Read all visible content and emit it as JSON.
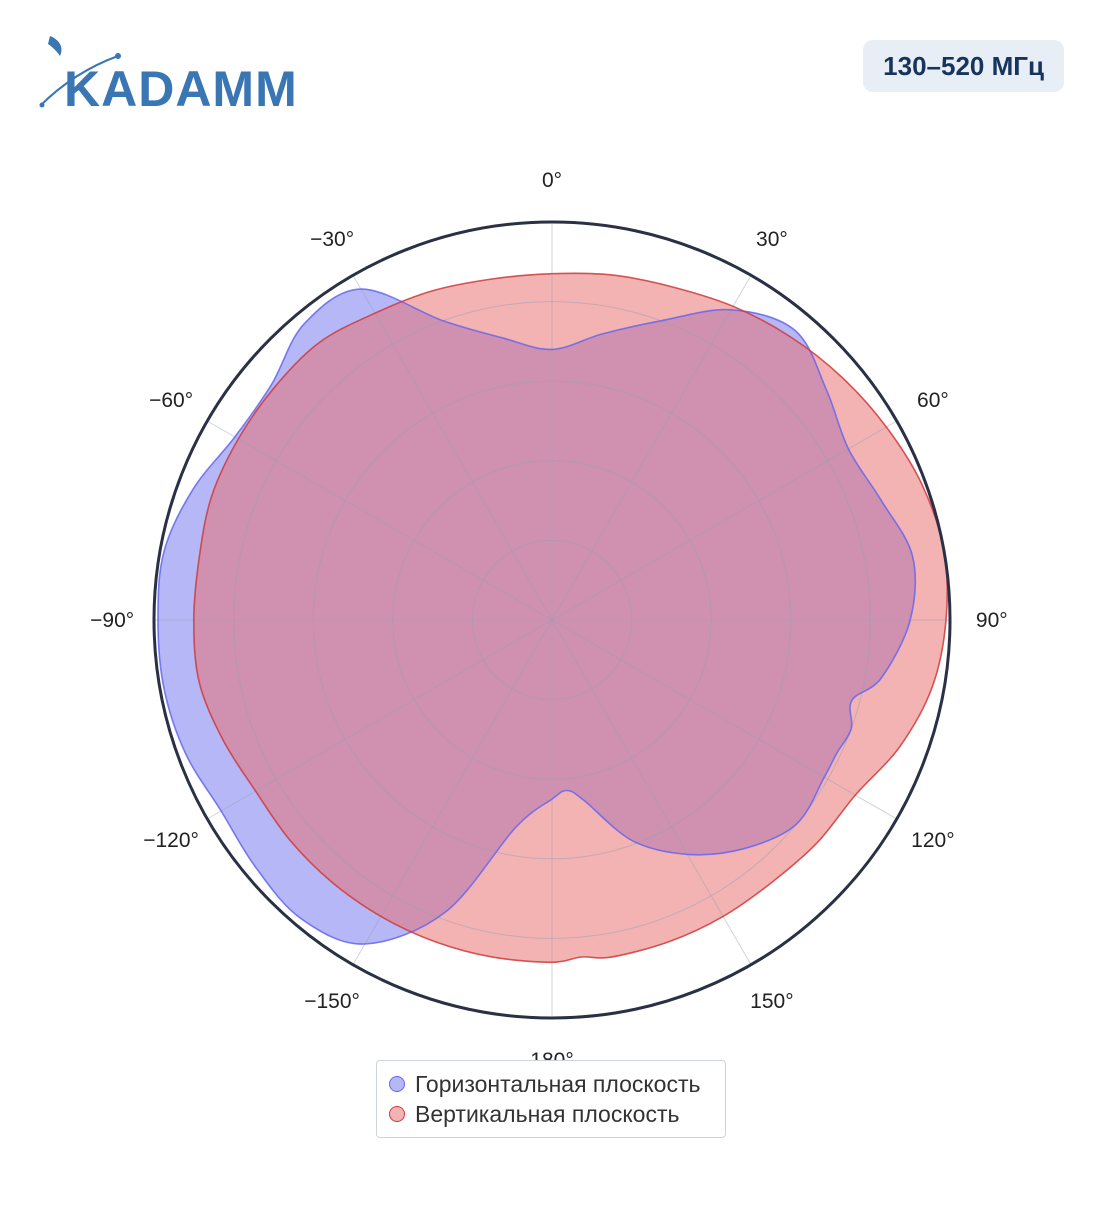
{
  "brand": {
    "name": "KADAMM",
    "color": "#3a76b4"
  },
  "badge": {
    "text": "130–520 МГц"
  },
  "chart_data": {
    "type": "polar",
    "angular_ticks": [
      {
        "deg": 0,
        "label": "0°"
      },
      {
        "deg": 30,
        "label": "30°"
      },
      {
        "deg": 60,
        "label": "60°"
      },
      {
        "deg": 90,
        "label": "90°"
      },
      {
        "deg": 120,
        "label": "120°"
      },
      {
        "deg": 150,
        "label": "150°"
      },
      {
        "deg": 180,
        "label": "180°"
      },
      {
        "deg": -150,
        "label": "−150°"
      },
      {
        "deg": -120,
        "label": "−120°"
      },
      {
        "deg": -90,
        "label": "−90°"
      },
      {
        "deg": -60,
        "label": "−60°"
      },
      {
        "deg": -30,
        "label": "−30°"
      }
    ],
    "radial_range": [
      0,
      1
    ],
    "radial_grid": [
      0.2,
      0.4,
      0.6,
      0.8,
      1.0
    ],
    "legend_position": "bottom",
    "series": [
      {
        "name": "Горизонтальная плоскость",
        "color": "#6466ee",
        "fill": "rgba(100,102,238,0.47)",
        "theta": [
          0,
          10,
          20,
          30,
          40,
          50,
          60,
          70,
          80,
          90,
          100,
          105,
          110,
          115,
          120,
          130,
          140,
          150,
          160,
          170,
          175,
          180,
          -170,
          -160,
          -150,
          -140,
          -130,
          -120,
          -110,
          -100,
          -90,
          -80,
          -70,
          -60,
          -50,
          -40,
          -30,
          -20,
          -10
        ],
        "r": [
          0.68,
          0.73,
          0.8,
          0.9,
          0.95,
          0.9,
          0.86,
          0.88,
          0.92,
          0.9,
          0.84,
          0.78,
          0.8,
          0.79,
          0.79,
          0.8,
          0.75,
          0.68,
          0.59,
          0.46,
          0.43,
          0.45,
          0.53,
          0.78,
          0.94,
          0.98,
          0.97,
          0.96,
          0.98,
          0.99,
          0.99,
          0.99,
          0.96,
          0.92,
          0.92,
          0.97,
          0.96,
          0.8,
          0.72
        ]
      },
      {
        "name": "Вертикальная плоскость",
        "color": "#d03a3a",
        "fill": "rgba(232,110,110,0.52)",
        "theta": [
          0,
          10,
          20,
          30,
          40,
          50,
          60,
          70,
          80,
          90,
          100,
          110,
          120,
          130,
          140,
          150,
          160,
          170,
          175,
          180,
          -170,
          -160,
          -150,
          -140,
          -130,
          -120,
          -110,
          -100,
          -90,
          -80,
          -70,
          -60,
          -50,
          -40,
          -30,
          -20,
          -10
        ],
        "r": [
          0.87,
          0.88,
          0.89,
          0.91,
          0.93,
          0.95,
          0.97,
          0.99,
          1.0,
          0.99,
          0.97,
          0.93,
          0.88,
          0.87,
          0.86,
          0.86,
          0.86,
          0.86,
          0.85,
          0.86,
          0.86,
          0.86,
          0.86,
          0.86,
          0.86,
          0.86,
          0.88,
          0.9,
          0.9,
          0.9,
          0.91,
          0.91,
          0.91,
          0.91,
          0.89,
          0.88,
          0.87
        ]
      }
    ]
  }
}
